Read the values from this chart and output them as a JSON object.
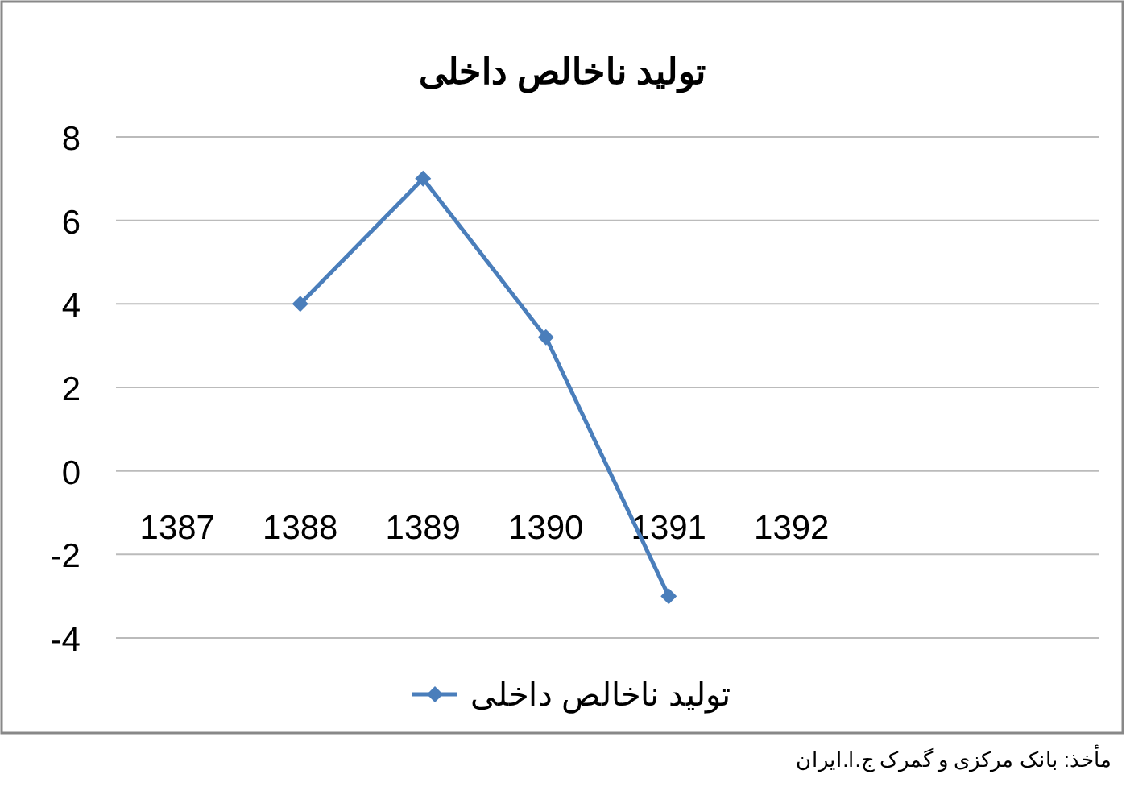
{
  "chart_data": {
    "type": "line",
    "title": "تولید ناخالص داخلی",
    "categories": [
      "1387",
      "1388",
      "1389",
      "1390",
      "1391",
      "1392",
      null,
      null
    ],
    "series": [
      {
        "name": "تولید ناخالص داخلی",
        "color": "#4a7ebb",
        "values": [
          null,
          4,
          7,
          3.2,
          -3,
          null,
          null,
          null
        ]
      }
    ],
    "ylim": [
      -4,
      8
    ],
    "yticks": [
      -4,
      -2,
      0,
      2,
      4,
      6,
      8
    ],
    "grid": "y",
    "legend": "bottom",
    "marker": "diamond",
    "line_style": "solid",
    "annotations": [
      "مأخذ: بانک مرکزی و گمرک ج.ا.ایران"
    ]
  }
}
